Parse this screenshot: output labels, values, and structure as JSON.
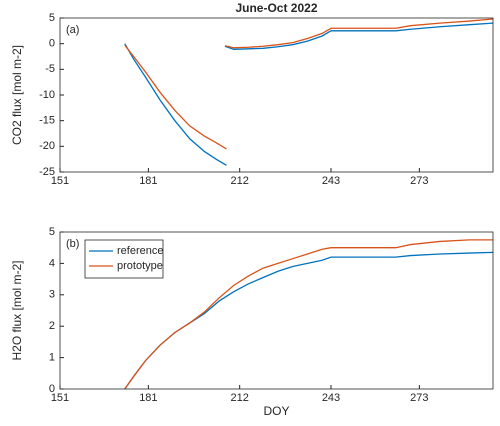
{
  "chart_data": [
    {
      "type": "line",
      "title": "June-Oct 2022",
      "panel_label": "(a)",
      "ylabel": "CO2 flux [mol m-2]",
      "x": [
        173,
        176,
        180,
        185,
        190,
        195,
        200,
        204,
        207.5,
        207.6,
        207,
        210,
        215,
        220,
        225,
        230,
        235,
        240,
        243,
        250,
        260,
        265,
        270,
        280,
        290,
        298
      ],
      "series": [
        {
          "color": "#0072BD",
          "values": [
            0,
            -3,
            -6.5,
            -11,
            -15,
            -18.5,
            -21,
            -22.5,
            -23.7,
            null,
            -0.5,
            -1.1,
            -1.0,
            -0.9,
            -0.6,
            -0.2,
            0.5,
            1.5,
            2.5,
            2.5,
            2.5,
            2.5,
            2.8,
            3.3,
            3.7,
            4.0
          ]
        },
        {
          "color": "#D95319",
          "values": [
            -0.3,
            -2.5,
            -5.5,
            -9.5,
            -13,
            -16,
            -18,
            -19.3,
            -20.5,
            null,
            -0.4,
            -0.8,
            -0.7,
            -0.5,
            -0.2,
            0.2,
            1.0,
            2.0,
            3.0,
            3.0,
            3.0,
            3.0,
            3.5,
            4.0,
            4.4,
            4.8
          ]
        }
      ],
      "xlim": [
        151,
        298
      ],
      "xticks": [
        151,
        181,
        212,
        243,
        273
      ],
      "ylim": [
        -25,
        5
      ],
      "yticks": [
        -25,
        -20,
        -15,
        -10,
        -5,
        0,
        5
      ]
    },
    {
      "type": "line",
      "panel_label": "(b)",
      "ylabel": "H2O flux [mol m-2]",
      "xlabel": "DOY",
      "legend": "upper left",
      "x": [
        173,
        176,
        180,
        185,
        190,
        195,
        200,
        205,
        210,
        215,
        220,
        225,
        230,
        235,
        240,
        243,
        250,
        260,
        265,
        270,
        280,
        290,
        298
      ],
      "series": [
        {
          "name": "reference",
          "color": "#0072BD",
          "values": [
            0,
            0.4,
            0.9,
            1.4,
            1.8,
            2.1,
            2.4,
            2.8,
            3.1,
            3.35,
            3.55,
            3.75,
            3.9,
            4.0,
            4.1,
            4.2,
            4.2,
            4.2,
            4.2,
            4.25,
            4.3,
            4.33,
            4.35
          ]
        },
        {
          "name": "prototype",
          "color": "#D95319",
          "values": [
            0,
            0.4,
            0.9,
            1.4,
            1.8,
            2.1,
            2.45,
            2.9,
            3.3,
            3.6,
            3.85,
            4.0,
            4.15,
            4.3,
            4.45,
            4.5,
            4.5,
            4.5,
            4.5,
            4.6,
            4.7,
            4.75,
            4.75
          ]
        }
      ],
      "xlim": [
        151,
        298
      ],
      "xticks": [
        151,
        181,
        212,
        243,
        273
      ],
      "ylim": [
        0,
        5
      ],
      "yticks": [
        0,
        1,
        2,
        3,
        4,
        5
      ]
    }
  ]
}
